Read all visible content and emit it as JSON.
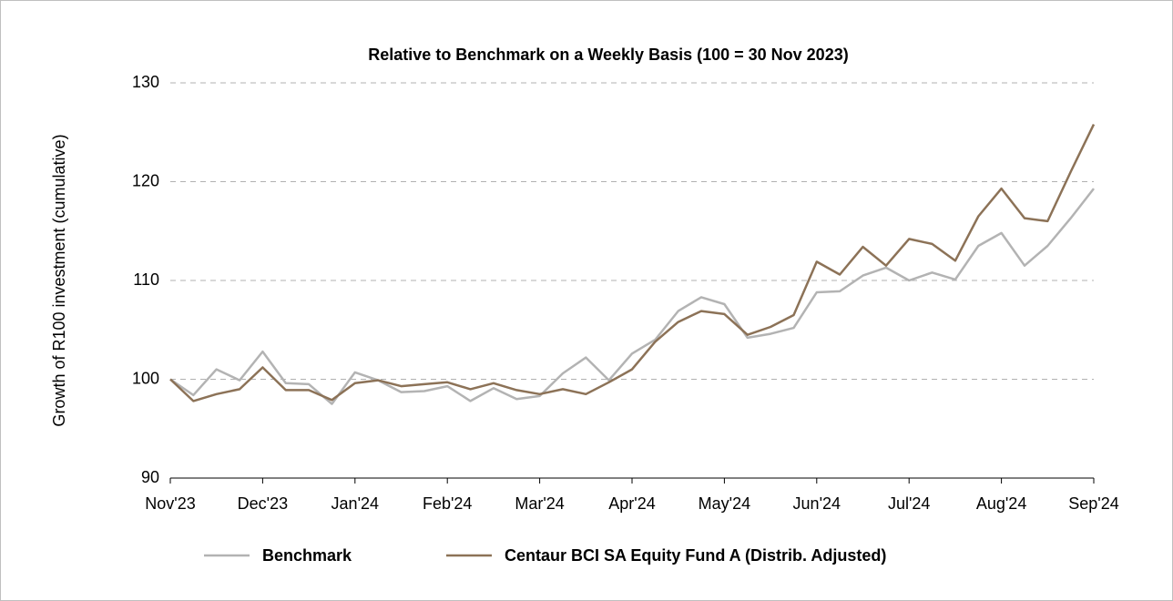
{
  "chart_data": {
    "type": "line",
    "title": "Relative to Benchmark on a Weekly Basis (100 = 30 Nov 2023)",
    "y_label": "Growth of R100 investment (cumulative)",
    "x": [
      0,
      0.25,
      0.5,
      0.75,
      1,
      1.25,
      1.5,
      1.75,
      2,
      2.25,
      2.5,
      2.75,
      3,
      3.25,
      3.5,
      3.75,
      4,
      4.25,
      4.5,
      4.75,
      5,
      5.25,
      5.5,
      5.75,
      6,
      6.25,
      6.5,
      6.75,
      7,
      7.25,
      7.5,
      7.75,
      8,
      8.25,
      8.5,
      8.75,
      9,
      9.25,
      9.5,
      9.75,
      10
    ],
    "xlim": [
      0,
      10
    ],
    "xticks": [
      {
        "value": 0,
        "label": "Nov'23"
      },
      {
        "value": 1,
        "label": "Dec'23"
      },
      {
        "value": 2,
        "label": "Jan'24"
      },
      {
        "value": 3,
        "label": "Feb'24"
      },
      {
        "value": 4,
        "label": "Mar'24"
      },
      {
        "value": 5,
        "label": "Apr'24"
      },
      {
        "value": 6,
        "label": "May'24"
      },
      {
        "value": 7,
        "label": "Jun'24"
      },
      {
        "value": 8,
        "label": "Jul'24"
      },
      {
        "value": 9,
        "label": "Aug'24"
      },
      {
        "value": 10,
        "label": "Sep'24"
      }
    ],
    "ylim": [
      90,
      130
    ],
    "yticks": [
      90,
      100,
      110,
      120,
      130
    ],
    "grid": true,
    "legend": "bottom",
    "series": [
      {
        "name": "Benchmark",
        "color": "#b3b3b3",
        "values": [
          100,
          98.4,
          101,
          99.9,
          102.8,
          99.6,
          99.5,
          97.5,
          100.7,
          99.9,
          98.7,
          98.8,
          99.3,
          97.8,
          99.1,
          98.0,
          98.3,
          100.6,
          102.2,
          99.9,
          102.6,
          104.0,
          106.9,
          108.3,
          107.6,
          104.2,
          104.6,
          105.2,
          108.8,
          108.9,
          110.5,
          111.3,
          110.0,
          110.8,
          110.1,
          113.5,
          114.8,
          111.5,
          113.5,
          116.3,
          119.3
        ]
      },
      {
        "name": "Centaur BCI SA Equity Fund A (Distrib. Adjusted)",
        "color": "#8c7257",
        "values": [
          100,
          97.8,
          98.5,
          99.0,
          101.2,
          98.9,
          98.9,
          97.9,
          99.6,
          99.9,
          99.3,
          99.5,
          99.7,
          99.0,
          99.6,
          98.9,
          98.5,
          99.0,
          98.5,
          99.7,
          101.0,
          103.8,
          105.8,
          106.9,
          106.6,
          104.5,
          105.3,
          106.5,
          111.9,
          110.6,
          113.4,
          111.5,
          114.2,
          113.7,
          112.0,
          116.5,
          119.3,
          116.3,
          116.0,
          121.0,
          125.8
        ]
      }
    ]
  }
}
